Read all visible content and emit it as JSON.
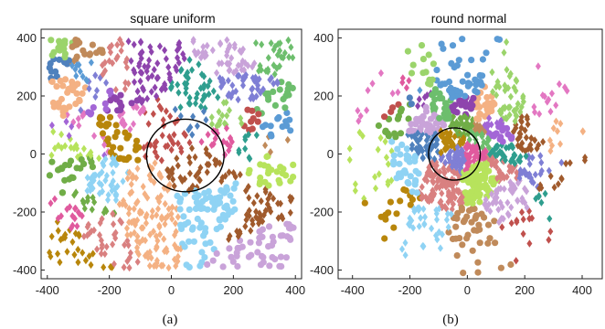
{
  "chart_data": [
    {
      "type": "scatter",
      "title": "square uniform",
      "caption": "(a)",
      "xlim": [
        -420,
        420
      ],
      "ylim": [
        -430,
        430
      ],
      "xticks": [
        -400,
        -200,
        0,
        200,
        400
      ],
      "xtick_labels": [
        "-400",
        "-200",
        "0",
        "200",
        "400"
      ],
      "yticks": [
        400,
        200,
        0,
        -200,
        -400
      ],
      "ytick_labels": [
        "400",
        "200",
        "0",
        "-200",
        "-400"
      ],
      "grid": false,
      "distribution": "square-uniform",
      "circle": {
        "cx": 45,
        "cy": -5,
        "r": 125
      },
      "cluster_count": 40,
      "marker_shapes": [
        "diamond",
        "circle"
      ]
    },
    {
      "type": "scatter",
      "title": "round normal",
      "caption": "(b)",
      "xlim": [
        -450,
        470
      ],
      "ylim": [
        -430,
        430
      ],
      "xticks": [
        -400,
        -200,
        0,
        200,
        400
      ],
      "xtick_labels": [
        "-400",
        "-200",
        "0",
        "200",
        "400"
      ],
      "yticks": [
        400,
        200,
        0,
        -200,
        -400
      ],
      "ytick_labels": [
        "400",
        "200",
        "0",
        "-200",
        "-400"
      ],
      "grid": false,
      "distribution": "round-normal",
      "circle": {
        "cx": -45,
        "cy": 0,
        "r": 90
      },
      "cluster_count": 40,
      "marker_shapes": [
        "diamond",
        "circle"
      ]
    }
  ],
  "palette": [
    "#5B9BD5",
    "#70AD47",
    "#A05A2C",
    "#C0504D",
    "#8E44AD",
    "#E377C2",
    "#B8860B",
    "#9BD46B",
    "#2E9E8E",
    "#F4B183",
    "#C9A3D9",
    "#D98080",
    "#4F81BD",
    "#B7E35C",
    "#7F7FD5",
    "#8FD3F4",
    "#6DBE6D",
    "#E05A9E",
    "#C08A5A",
    "#A366D6"
  ]
}
